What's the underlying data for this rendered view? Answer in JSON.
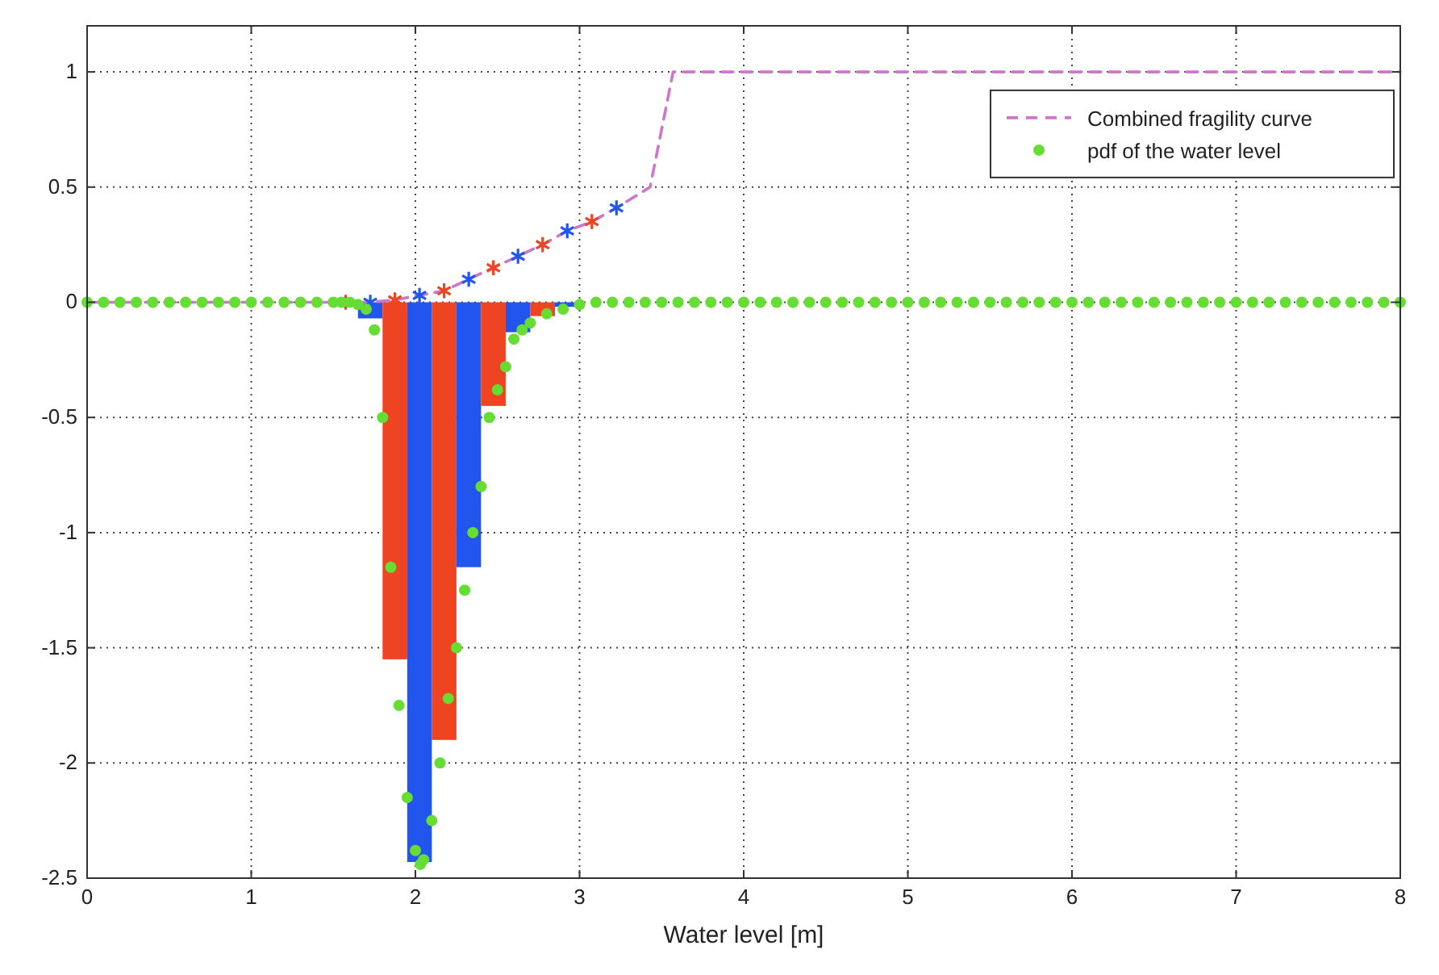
{
  "chart_data": {
    "type": "line",
    "xlabel": "Water level [m]",
    "xlim": [
      0,
      8
    ],
    "ylim": [
      -2.5,
      1.2
    ],
    "xticks": [
      0,
      1,
      2,
      3,
      4,
      5,
      6,
      7,
      8
    ],
    "yticks": [
      -2.5,
      -2,
      -1.5,
      -1,
      -0.5,
      0,
      0.5,
      1
    ],
    "grid": true,
    "legend": "top right",
    "series": [
      {
        "type": "bar",
        "x": [
          1.575,
          1.725,
          1.875,
          2.025,
          2.175,
          2.325,
          2.475,
          2.625,
          2.775,
          2.925
        ],
        "values": [
          0,
          -0.07,
          -1.55,
          -2.43,
          -1.9,
          -1.15,
          -0.45,
          -0.13,
          -0.06,
          -0.02
        ],
        "colors": [
          "#ee4422",
          "#2255ee",
          "#ee4422",
          "#2255ee",
          "#ee4422",
          "#2255ee",
          "#ee4422",
          "#2255ee",
          "#ee4422",
          "#2255ee"
        ]
      },
      {
        "name": "Combined fragility curve",
        "line_style": "dashed",
        "marker": "none",
        "color": "#cc77cc",
        "x": [
          0,
          1.575,
          1.725,
          1.875,
          2.025,
          2.175,
          2.325,
          2.475,
          2.625,
          2.775,
          2.925,
          3.075,
          3.225,
          3.43,
          3.57,
          8
        ],
        "values": [
          0,
          0,
          0,
          0.01,
          0.03,
          0.05,
          0.1,
          0.15,
          0.2,
          0.25,
          0.31,
          0.35,
          0.41,
          0.5,
          1,
          1
        ]
      },
      {
        "type": "scatter",
        "marker": "cross",
        "color": "#ee4422",
        "x": [
          1.575,
          1.875,
          2.175,
          2.475,
          2.775,
          3.075
        ],
        "values": [
          0,
          0.01,
          0.05,
          0.15,
          0.25,
          0.35
        ]
      },
      {
        "type": "scatter",
        "marker": "cross",
        "color": "#2255ee",
        "x": [
          1.725,
          2.025,
          2.325,
          2.625,
          2.925,
          3.225
        ],
        "values": [
          0,
          0.03,
          0.1,
          0.2,
          0.31,
          0.41
        ]
      },
      {
        "name": "pdf of the water level",
        "type": "scatter",
        "marker": "circle",
        "color": "#66dd33",
        "x": [
          0,
          0.1,
          0.2,
          0.3,
          0.4,
          0.5,
          0.6,
          0.7,
          0.8,
          0.9,
          1,
          1.1,
          1.2,
          1.3,
          1.4,
          1.5,
          1.55,
          1.6,
          1.65,
          1.7,
          1.75,
          1.8,
          1.85,
          1.9,
          1.95,
          2,
          2.03,
          2.05,
          2.1,
          2.15,
          2.2,
          2.25,
          2.3,
          2.35,
          2.4,
          2.45,
          2.5,
          2.55,
          2.6,
          2.65,
          2.7,
          2.8,
          2.9,
          3,
          3.1,
          3.2,
          3.3,
          3.4,
          3.5,
          3.6,
          3.7,
          3.8,
          3.9,
          4,
          4.1,
          4.2,
          4.3,
          4.4,
          4.5,
          4.6,
          4.7,
          4.8,
          4.9,
          5,
          5.1,
          5.2,
          5.3,
          5.4,
          5.5,
          5.6,
          5.7,
          5.8,
          5.9,
          6,
          6.1,
          6.2,
          6.3,
          6.4,
          6.5,
          6.6,
          6.7,
          6.8,
          6.9,
          7,
          7.1,
          7.2,
          7.3,
          7.4,
          7.5,
          7.6,
          7.7,
          7.8,
          7.9,
          8
        ],
        "values": [
          0,
          0,
          0,
          0,
          0,
          0,
          0,
          0,
          0,
          0,
          0,
          0,
          0,
          0,
          0,
          0,
          0,
          0,
          -0.01,
          -0.03,
          -0.12,
          -0.5,
          -1.15,
          -1.75,
          -2.15,
          -2.38,
          -2.44,
          -2.42,
          -2.25,
          -2,
          -1.72,
          -1.5,
          -1.25,
          -1,
          -0.8,
          -0.5,
          -0.38,
          -0.28,
          -0.16,
          -0.12,
          -0.09,
          -0.05,
          -0.03,
          -0.01,
          0,
          0,
          0,
          0,
          0,
          0,
          0,
          0,
          0,
          0,
          0,
          0,
          0,
          0,
          0,
          0,
          0,
          0,
          0,
          0,
          0,
          0,
          0,
          0,
          0,
          0,
          0,
          0,
          0,
          0,
          0,
          0,
          0,
          0,
          0,
          0,
          0,
          0,
          0,
          0,
          0,
          0,
          0,
          0,
          0,
          0,
          0,
          0,
          0,
          0
        ]
      }
    ]
  }
}
